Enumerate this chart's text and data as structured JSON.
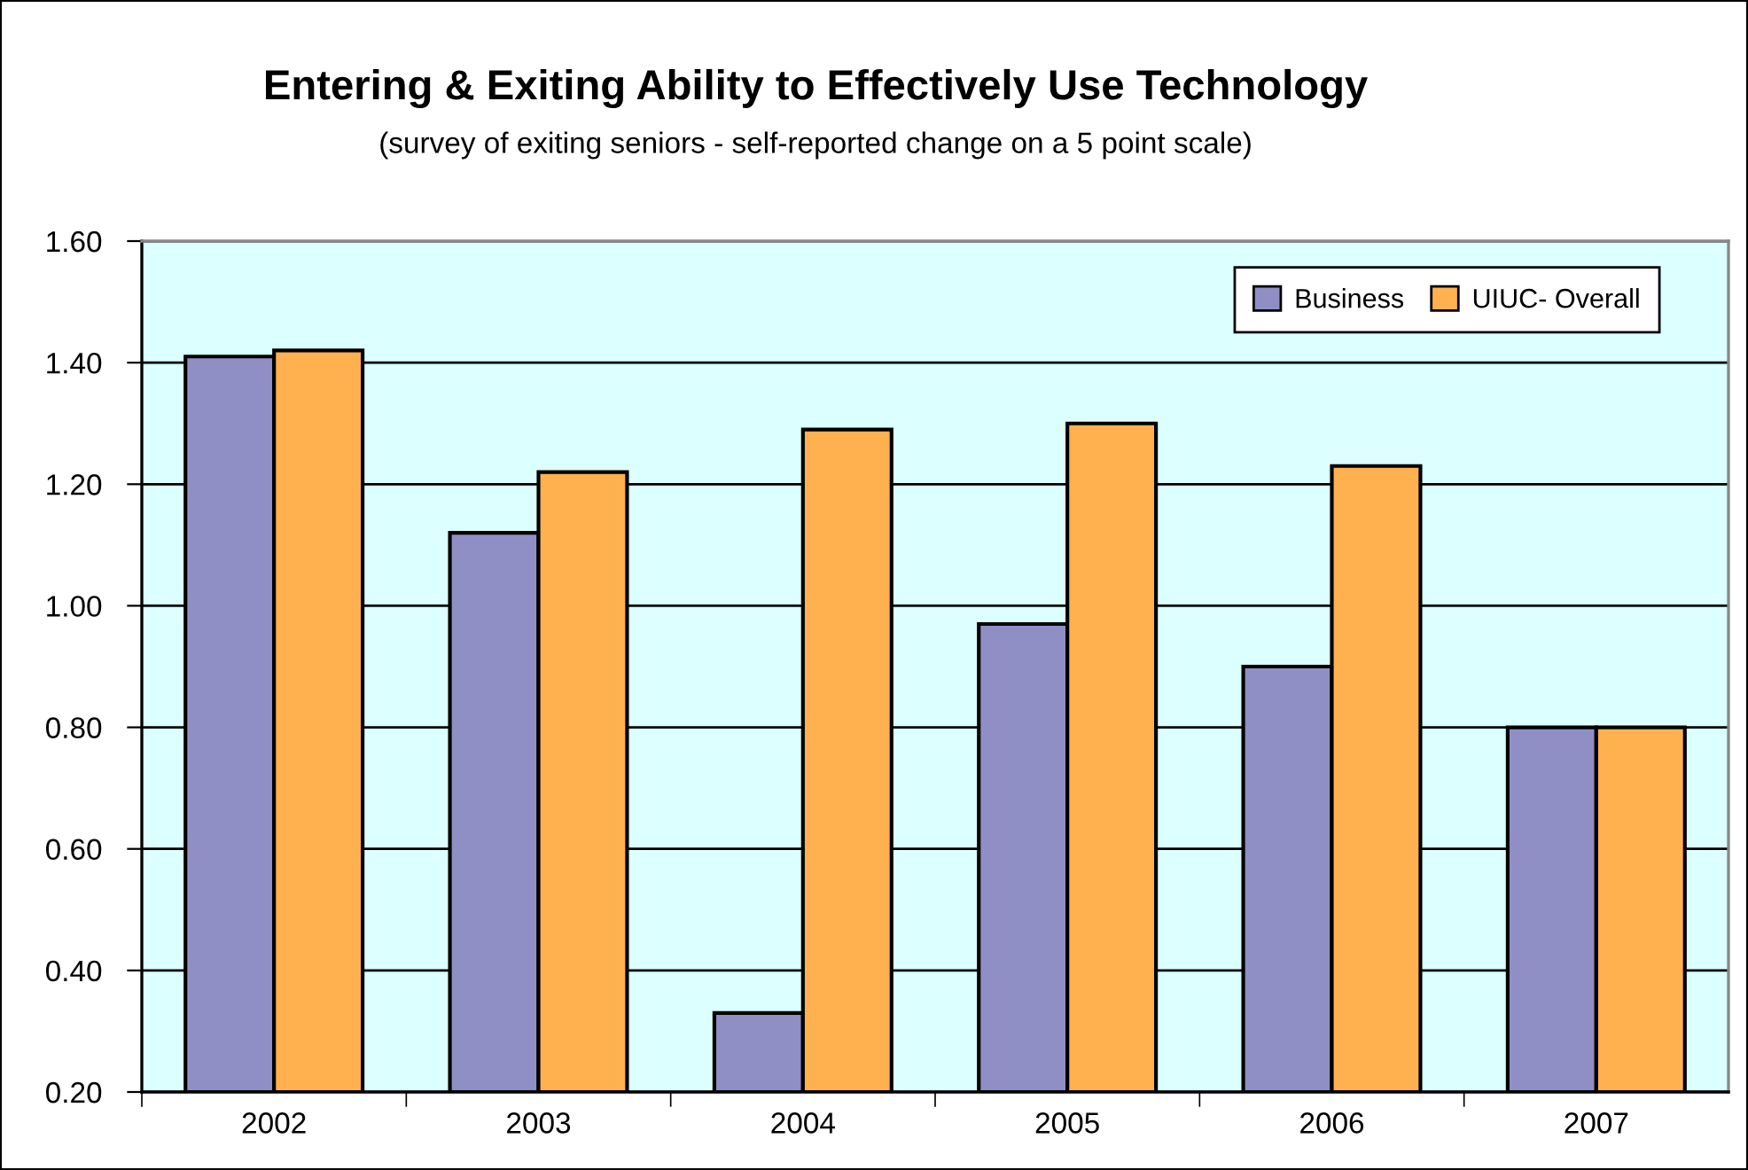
{
  "chart_data": {
    "type": "bar",
    "title": "Entering & Exiting Ability to Effectively Use Technology",
    "subtitle": "(survey of exiting seniors - self-reported change on a 5 point scale)",
    "categories": [
      "2002",
      "2003",
      "2004",
      "2005",
      "2006",
      "2007"
    ],
    "series": [
      {
        "name": "Business",
        "color": "#8f8fc6",
        "values": [
          1.41,
          1.12,
          0.33,
          0.97,
          0.9,
          0.8
        ]
      },
      {
        "name": "UIUC- Overall",
        "color": "#ffb14f",
        "values": [
          1.42,
          1.22,
          1.29,
          1.3,
          1.23,
          0.8
        ]
      }
    ],
    "ylim": [
      0.2,
      1.6
    ],
    "yticks": [
      {
        "value": 0.2,
        "label": "0.20"
      },
      {
        "value": 0.4,
        "label": "0.40"
      },
      {
        "value": 0.6,
        "label": "0.60"
      },
      {
        "value": 0.8,
        "label": "0.80"
      },
      {
        "value": 1.0,
        "label": "1.00"
      },
      {
        "value": 1.2,
        "label": "1.20"
      },
      {
        "value": 1.4,
        "label": "1.40"
      },
      {
        "value": 1.6,
        "label": "1.60"
      }
    ],
    "grid": "y",
    "legend": "top right"
  }
}
